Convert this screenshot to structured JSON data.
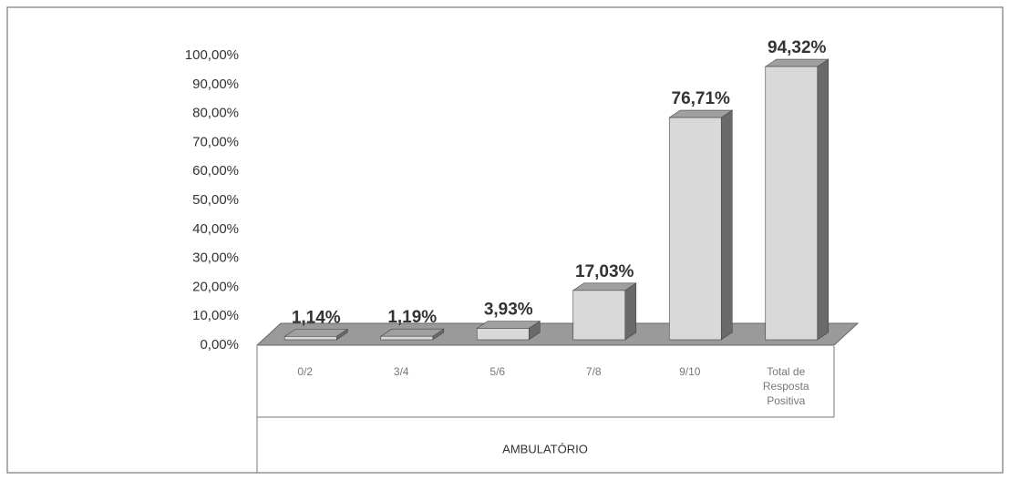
{
  "chart_data": {
    "type": "bar3d",
    "categories": [
      "0/2",
      "3/4",
      "5/6",
      "7/8",
      "9/10",
      "Total de Resposta Positiva"
    ],
    "values": [
      1.14,
      1.19,
      3.93,
      17.03,
      76.71,
      94.32
    ],
    "value_labels": [
      "1,14%",
      "1,19%",
      "3,93%",
      "17,03%",
      "76,71%",
      "94,32%"
    ],
    "x_label": "AMBULATÓRIO",
    "ylim": [
      0,
      100
    ],
    "yticks": [
      {
        "value": 0,
        "label": "0,00%"
      },
      {
        "value": 10,
        "label": "10,00%"
      },
      {
        "value": 20,
        "label": "20,00%"
      },
      {
        "value": 30,
        "label": "30,00%"
      },
      {
        "value": 40,
        "label": "40,00%"
      },
      {
        "value": 50,
        "label": "50,00%"
      },
      {
        "value": 60,
        "label": "60,00%"
      },
      {
        "value": 70,
        "label": "70,00%"
      },
      {
        "value": 80,
        "label": "80,00%"
      },
      {
        "value": 90,
        "label": "90,00%"
      },
      {
        "value": 100,
        "label": "100,00%"
      }
    ],
    "color": "#d9d9d9",
    "grid": false
  }
}
